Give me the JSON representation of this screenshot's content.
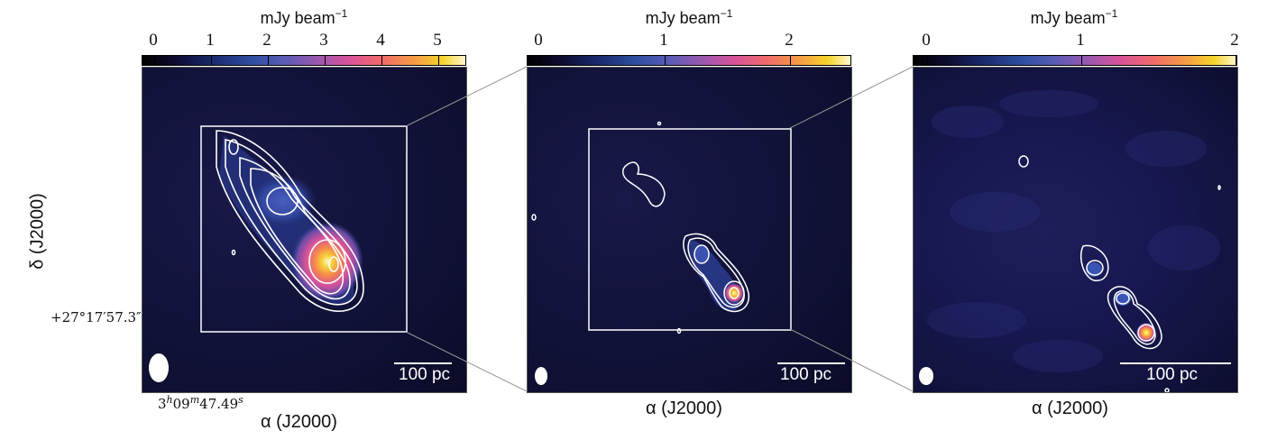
{
  "panels": [
    {
      "colorbar": {
        "unit_base": "mJy beam",
        "unit_exp": "−1",
        "ticks": [
          "0",
          "1",
          "2",
          "3",
          "4",
          "5"
        ]
      },
      "scalebar": "100 pc",
      "xlabel": "α (J2000)",
      "ylabel": "δ (J2000)",
      "ra_coord": {
        "h": "3",
        "m": "09",
        "s": "47.49"
      },
      "dec_coord": "+27°17′57.3″"
    },
    {
      "colorbar": {
        "unit_base": "mJy beam",
        "unit_exp": "−1",
        "ticks": [
          "0",
          "1",
          "2"
        ]
      },
      "scalebar": "100 pc",
      "xlabel": "α (J2000)"
    },
    {
      "colorbar": {
        "unit_base": "mJy beam",
        "unit_exp": "−1",
        "ticks": [
          "0",
          "1",
          "2"
        ]
      },
      "scalebar": "100 pc",
      "xlabel": "α (J2000)"
    }
  ],
  "colormap": [
    "#000000",
    "#1a2a6e",
    "#2f4fa2",
    "#9a58b0",
    "#d8529a",
    "#f59a45",
    "#f5d42a",
    "#fff8d0"
  ]
}
